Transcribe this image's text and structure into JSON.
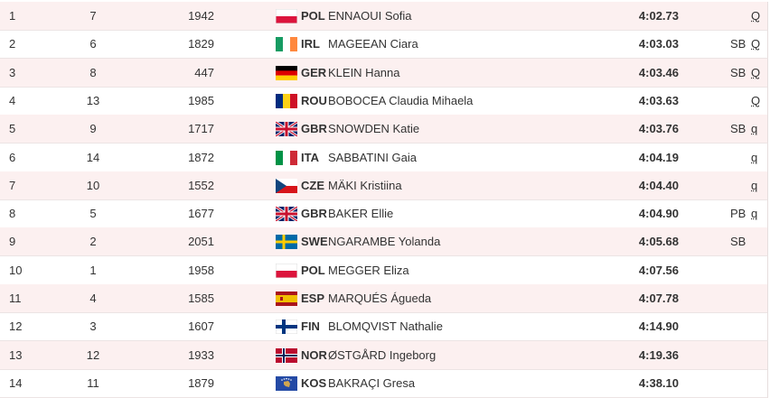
{
  "table": {
    "rows": [
      {
        "rank": "1",
        "order": "7",
        "bib": "1942",
        "country": "POL",
        "athlete": "ENNAOUI Sofia",
        "time": "4:02.73",
        "q": "Q"
      },
      {
        "rank": "2",
        "order": "6",
        "bib": "1829",
        "country": "IRL",
        "athlete": "MAGEEAN Ciara",
        "time": "4:03.03",
        "record": "SB",
        "q": "Q"
      },
      {
        "rank": "3",
        "order": "8",
        "bib": "447",
        "country": "GER",
        "athlete": "KLEIN Hanna",
        "time": "4:03.46",
        "record": "SB",
        "q": "Q"
      },
      {
        "rank": "4",
        "order": "13",
        "bib": "1985",
        "country": "ROU",
        "athlete": "BOBOCEA Claudia Mihaela",
        "time": "4:03.63",
        "q": "Q"
      },
      {
        "rank": "5",
        "order": "9",
        "bib": "1717",
        "country": "GBR",
        "athlete": "SNOWDEN Katie",
        "time": "4:03.76",
        "record": "SB",
        "q": "q"
      },
      {
        "rank": "6",
        "order": "14",
        "bib": "1872",
        "country": "ITA",
        "athlete": "SABBATINI Gaia",
        "time": "4:04.19",
        "q": "q"
      },
      {
        "rank": "7",
        "order": "10",
        "bib": "1552",
        "country": "CZE",
        "athlete": "MÄKI Kristiina",
        "time": "4:04.40",
        "q": "q"
      },
      {
        "rank": "8",
        "order": "5",
        "bib": "1677",
        "country": "GBR",
        "athlete": "BAKER Ellie",
        "time": "4:04.90",
        "record": "PB",
        "q": "q"
      },
      {
        "rank": "9",
        "order": "2",
        "bib": "2051",
        "country": "SWE",
        "athlete": "NGARAMBE Yolanda",
        "time": "4:05.68",
        "record": "SB"
      },
      {
        "rank": "10",
        "order": "1",
        "bib": "1958",
        "country": "POL",
        "athlete": "MEGGER Eliza",
        "time": "4:07.56"
      },
      {
        "rank": "11",
        "order": "4",
        "bib": "1585",
        "country": "ESP",
        "athlete": "MARQUÉS Águeda",
        "time": "4:07.78"
      },
      {
        "rank": "12",
        "order": "3",
        "bib": "1607",
        "country": "FIN",
        "athlete": "BLOMQVIST Nathalie",
        "time": "4:14.90"
      },
      {
        "rank": "13",
        "order": "12",
        "bib": "1933",
        "country": "NOR",
        "athlete": "ØSTGÅRD Ingeborg",
        "time": "4:19.36"
      },
      {
        "rank": "14",
        "order": "11",
        "bib": "1879",
        "country": "KOS",
        "athlete": "BAKRAÇI Gresa",
        "time": "4:38.10"
      }
    ]
  }
}
